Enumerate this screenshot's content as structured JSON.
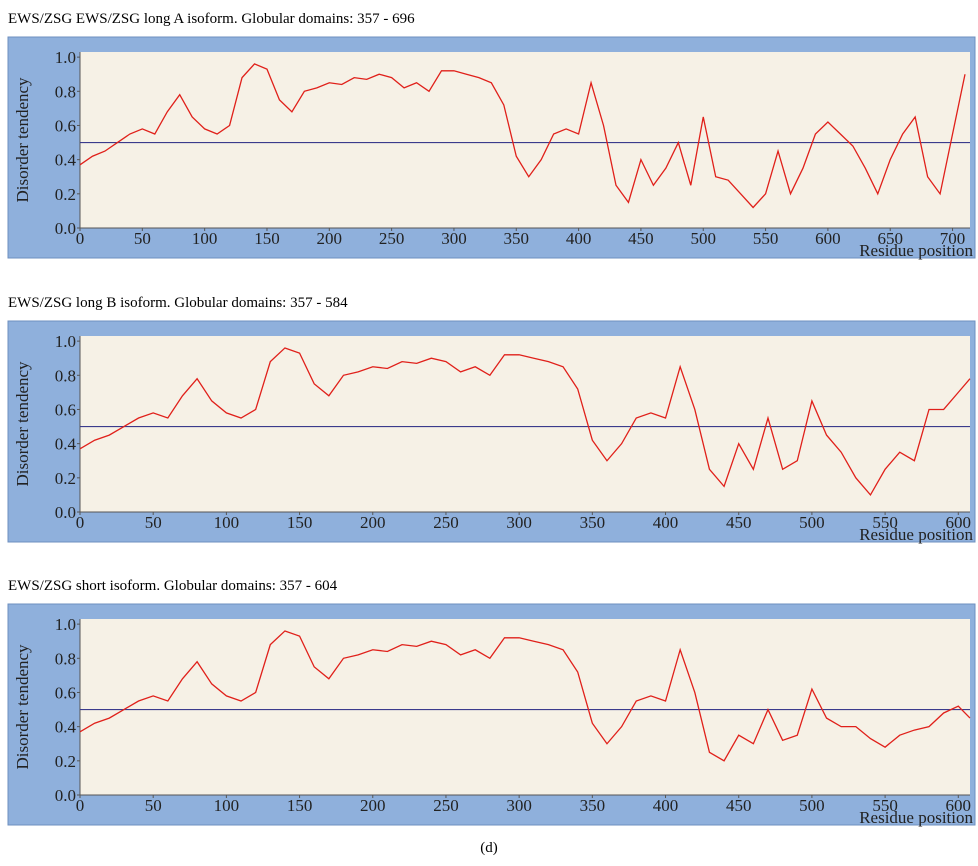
{
  "chart_data": [
    {
      "type": "line",
      "title": "EWS/ZSG EWS/ZSG long A isoform. Globular domains: 357 - 696",
      "x_label": "Residue position",
      "y_label": "Disorder tendency",
      "color": "#e0201a",
      "threshold": 0.5,
      "xlim": [
        0,
        714
      ],
      "ylim": [
        0,
        1.03
      ],
      "xticks": [
        0,
        50,
        100,
        150,
        200,
        250,
        300,
        350,
        400,
        450,
        500,
        550,
        600,
        650,
        700
      ],
      "yticks": [
        {
          "value": 0,
          "label": "0.0"
        },
        {
          "value": 0.2,
          "label": "0.2"
        },
        {
          "value": 0.4,
          "label": "0.4"
        },
        {
          "value": 0.6,
          "label": "0.6"
        },
        {
          "value": 0.8,
          "label": "0.8"
        },
        {
          "value": 1,
          "label": "1.0"
        }
      ],
      "x": [
        0,
        10,
        20,
        30,
        40,
        50,
        60,
        70,
        80,
        90,
        100,
        110,
        120,
        130,
        140,
        150,
        160,
        170,
        180,
        190,
        200,
        210,
        220,
        230,
        240,
        250,
        260,
        270,
        280,
        290,
        300,
        310,
        320,
        330,
        340,
        350,
        360,
        370,
        380,
        390,
        400,
        410,
        420,
        430,
        440,
        450,
        460,
        470,
        480,
        490,
        500,
        510,
        520,
        530,
        540,
        550,
        560,
        570,
        580,
        590,
        600,
        610,
        620,
        630,
        640,
        650,
        660,
        670,
        680,
        690,
        700,
        710
      ],
      "values": [
        0.37,
        0.42,
        0.45,
        0.5,
        0.55,
        0.58,
        0.55,
        0.68,
        0.78,
        0.65,
        0.58,
        0.55,
        0.6,
        0.88,
        0.96,
        0.93,
        0.75,
        0.68,
        0.8,
        0.82,
        0.85,
        0.84,
        0.88,
        0.87,
        0.9,
        0.88,
        0.82,
        0.85,
        0.8,
        0.92,
        0.92,
        0.9,
        0.88,
        0.85,
        0.72,
        0.42,
        0.3,
        0.4,
        0.55,
        0.58,
        0.55,
        0.85,
        0.6,
        0.25,
        0.15,
        0.4,
        0.25,
        0.35,
        0.5,
        0.25,
        0.65,
        0.3,
        0.28,
        0.2,
        0.12,
        0.2,
        0.45,
        0.2,
        0.35,
        0.55,
        0.62,
        0.55,
        0.48,
        0.35,
        0.2,
        0.4,
        0.55,
        0.65,
        0.3,
        0.2,
        0.55,
        0.9
      ]
    },
    {
      "type": "line",
      "title": "EWS/ZSG long B isoform. Globular domains: 357 - 584",
      "x_label": "Residue position",
      "y_label": "Disorder tendency",
      "color": "#e0201a",
      "threshold": 0.5,
      "xlim": [
        0,
        608
      ],
      "ylim": [
        0,
        1.03
      ],
      "xticks": [
        0,
        50,
        100,
        150,
        200,
        250,
        300,
        350,
        400,
        450,
        500,
        550,
        600
      ],
      "yticks": [
        {
          "value": 0,
          "label": "0.0"
        },
        {
          "value": 0.2,
          "label": "0.2"
        },
        {
          "value": 0.4,
          "label": "0.4"
        },
        {
          "value": 0.6,
          "label": "0.6"
        },
        {
          "value": 0.8,
          "label": "0.8"
        },
        {
          "value": 1,
          "label": "1.0"
        }
      ],
      "x": [
        0,
        10,
        20,
        30,
        40,
        50,
        60,
        70,
        80,
        90,
        100,
        110,
        120,
        130,
        140,
        150,
        160,
        170,
        180,
        190,
        200,
        210,
        220,
        230,
        240,
        250,
        260,
        270,
        280,
        290,
        300,
        310,
        320,
        330,
        340,
        350,
        360,
        370,
        380,
        390,
        400,
        410,
        420,
        430,
        440,
        450,
        460,
        470,
        480,
        490,
        500,
        510,
        520,
        530,
        540,
        550,
        560,
        570,
        580,
        590,
        600,
        608
      ],
      "values": [
        0.37,
        0.42,
        0.45,
        0.5,
        0.55,
        0.58,
        0.55,
        0.68,
        0.78,
        0.65,
        0.58,
        0.55,
        0.6,
        0.88,
        0.96,
        0.93,
        0.75,
        0.68,
        0.8,
        0.82,
        0.85,
        0.84,
        0.88,
        0.87,
        0.9,
        0.88,
        0.82,
        0.85,
        0.8,
        0.92,
        0.92,
        0.9,
        0.88,
        0.85,
        0.72,
        0.42,
        0.3,
        0.4,
        0.55,
        0.58,
        0.55,
        0.85,
        0.6,
        0.25,
        0.15,
        0.4,
        0.25,
        0.55,
        0.25,
        0.3,
        0.65,
        0.45,
        0.35,
        0.2,
        0.1,
        0.25,
        0.35,
        0.3,
        0.6,
        0.6,
        0.7,
        0.78
      ]
    },
    {
      "type": "line",
      "title": "EWS/ZSG short isoform. Globular domains: 357 - 604",
      "x_label": "Residue position",
      "y_label": "Disorder tendency",
      "color": "#e0201a",
      "threshold": 0.5,
      "xlim": [
        0,
        608
      ],
      "ylim": [
        0,
        1.03
      ],
      "xticks": [
        0,
        50,
        100,
        150,
        200,
        250,
        300,
        350,
        400,
        450,
        500,
        550,
        600
      ],
      "yticks": [
        {
          "value": 0,
          "label": "0.0"
        },
        {
          "value": 0.2,
          "label": "0.2"
        },
        {
          "value": 0.4,
          "label": "0.4"
        },
        {
          "value": 0.6,
          "label": "0.6"
        },
        {
          "value": 0.8,
          "label": "0.8"
        },
        {
          "value": 1,
          "label": "1.0"
        }
      ],
      "x": [
        0,
        10,
        20,
        30,
        40,
        50,
        60,
        70,
        80,
        90,
        100,
        110,
        120,
        130,
        140,
        150,
        160,
        170,
        180,
        190,
        200,
        210,
        220,
        230,
        240,
        250,
        260,
        270,
        280,
        290,
        300,
        310,
        320,
        330,
        340,
        350,
        360,
        370,
        380,
        390,
        400,
        410,
        420,
        430,
        440,
        450,
        460,
        470,
        480,
        490,
        500,
        510,
        520,
        530,
        540,
        550,
        560,
        570,
        580,
        590,
        600,
        608
      ],
      "values": [
        0.37,
        0.42,
        0.45,
        0.5,
        0.55,
        0.58,
        0.55,
        0.68,
        0.78,
        0.65,
        0.58,
        0.55,
        0.6,
        0.88,
        0.96,
        0.93,
        0.75,
        0.68,
        0.8,
        0.82,
        0.85,
        0.84,
        0.88,
        0.87,
        0.9,
        0.88,
        0.82,
        0.85,
        0.8,
        0.92,
        0.92,
        0.9,
        0.88,
        0.85,
        0.72,
        0.42,
        0.3,
        0.4,
        0.55,
        0.58,
        0.55,
        0.85,
        0.6,
        0.25,
        0.2,
        0.35,
        0.3,
        0.5,
        0.32,
        0.35,
        0.62,
        0.45,
        0.4,
        0.4,
        0.33,
        0.28,
        0.35,
        0.38,
        0.4,
        0.48,
        0.52,
        0.45
      ]
    }
  ],
  "caption": "(d)"
}
